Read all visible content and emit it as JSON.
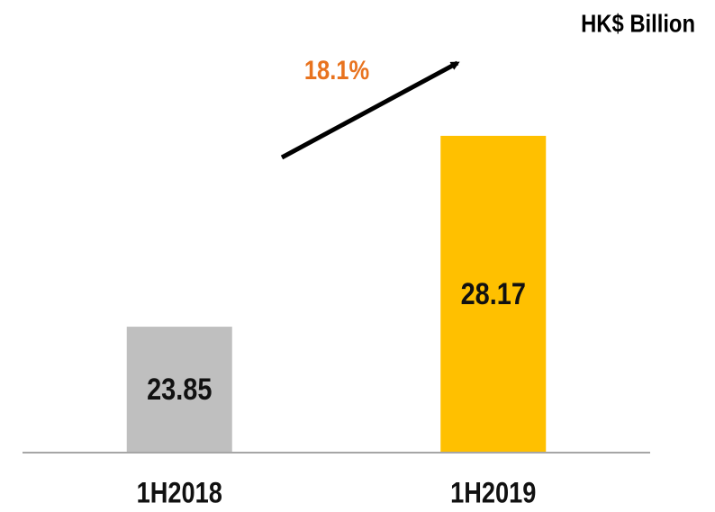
{
  "chart_data": {
    "type": "bar",
    "unit_label": "HK$ Billion",
    "annotation": "18.1%",
    "categories": [
      "1H2018",
      "1H2019"
    ],
    "values": [
      23.85,
      28.17
    ],
    "colors": [
      "#bfbfbf",
      "#ffc000"
    ],
    "annotation_color": "#e8731f",
    "ylim": [
      21,
      31
    ]
  }
}
